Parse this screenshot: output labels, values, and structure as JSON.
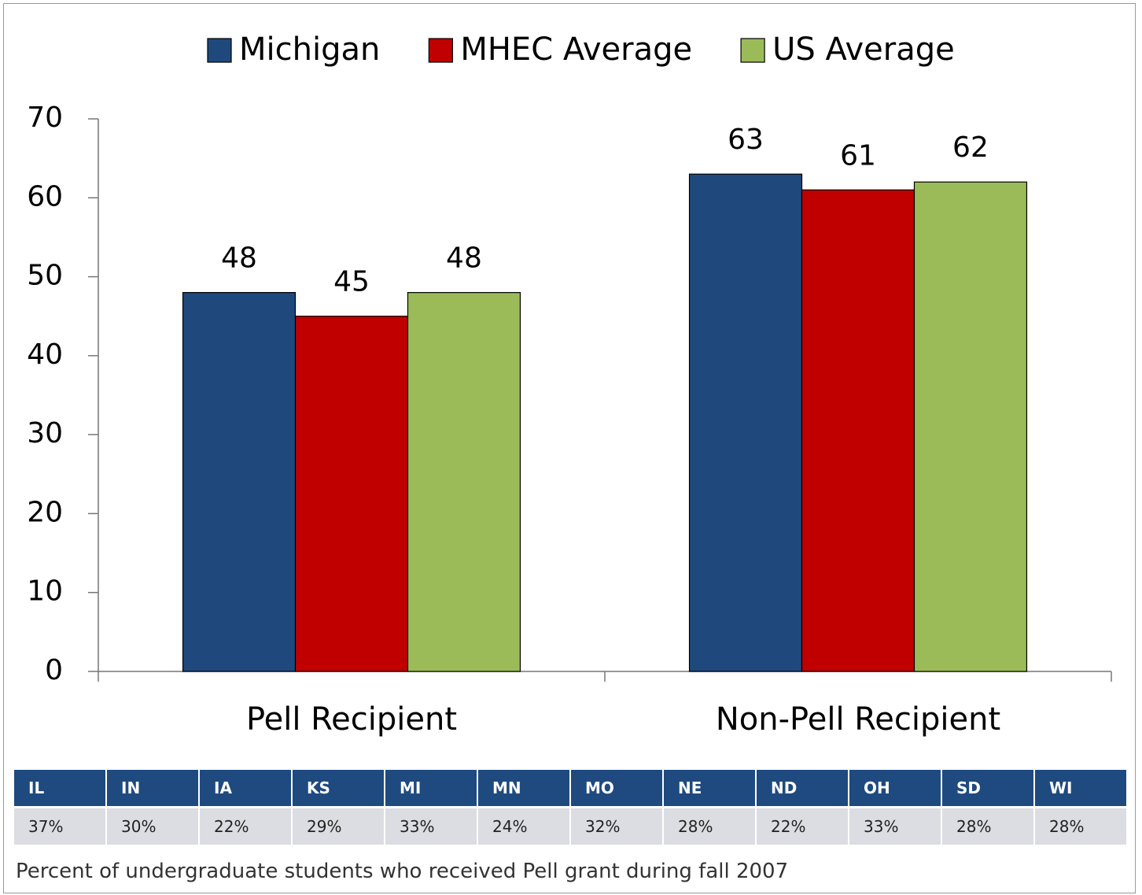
{
  "chart_data": {
    "type": "bar",
    "categories": [
      "Pell Recipient",
      "Non-Pell Recipient"
    ],
    "series": [
      {
        "name": "Michigan",
        "color": "#1f497d",
        "values": [
          48,
          63
        ]
      },
      {
        "name": "MHEC Average",
        "color": "#c00000",
        "values": [
          45,
          61
        ]
      },
      {
        "name": "US Average",
        "color": "#9bbb59",
        "values": [
          48,
          62
        ]
      }
    ],
    "ylim": [
      0,
      70
    ],
    "yticks": [
      0,
      10,
      20,
      30,
      40,
      50,
      60,
      70
    ],
    "grid": false,
    "legend": "top"
  },
  "table": {
    "header": [
      "IL",
      "IN",
      "IA",
      "KS",
      "MI",
      "MN",
      "MO",
      "NE",
      "ND",
      "OH",
      "SD",
      "WI"
    ],
    "rows": [
      [
        "37%",
        "30%",
        "22%",
        "29%",
        "33%",
        "24%",
        "32%",
        "28%",
        "22%",
        "33%",
        "28%",
        "28%"
      ]
    ]
  },
  "caption": "Percent of undergraduate students who received Pell grant during fall 2007"
}
